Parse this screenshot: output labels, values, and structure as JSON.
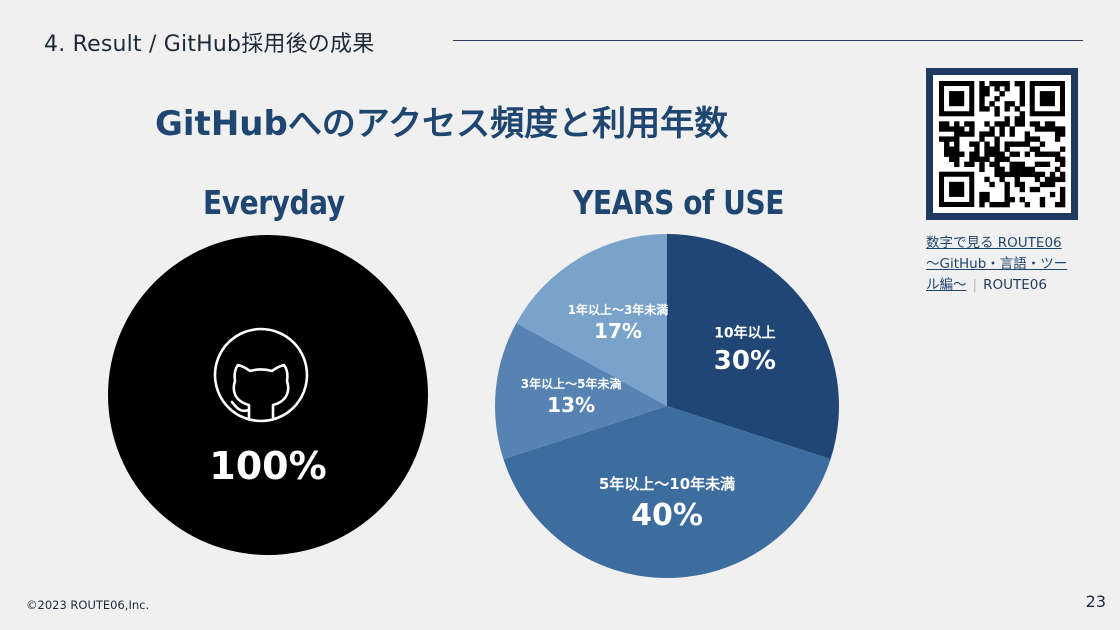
{
  "header": {
    "section_title": "4.  Result / GitHub採用後の成果",
    "main_title": "GitHubへのアクセス頻度と利用年数"
  },
  "everyday": {
    "title": "Everyday",
    "value_label": "100%",
    "icon": "github-octocat-icon"
  },
  "chart_data": [
    {
      "type": "pie",
      "title": "Everyday",
      "categories": [
        ""
      ],
      "values": [
        100
      ],
      "data_labels": [
        "100%"
      ],
      "colors": [
        "#000000"
      ]
    },
    {
      "type": "pie",
      "title": "YEARS of USE",
      "categories": [
        "10年以上",
        "5年以上〜10年未満",
        "3年以上〜5年未満",
        "1年以上〜3年未満"
      ],
      "values": [
        30,
        40,
        13,
        17
      ],
      "data_labels": [
        "30%",
        "40%",
        "13%",
        "17%"
      ],
      "colors": [
        "#1f4675",
        "#3d6c9e",
        "#5683b1",
        "#7aa3cc"
      ]
    }
  ],
  "qr": {
    "icon": "qr-code-icon"
  },
  "link": {
    "line1": "数字で見る ROUTE06",
    "line2": "〜GitHub・言語・ツー",
    "line3": "ル編〜",
    "separator": "|",
    "source": "ROUTE06"
  },
  "footer": {
    "copyright": "©2023 ROUTE06,Inc.",
    "page_number": "23"
  }
}
